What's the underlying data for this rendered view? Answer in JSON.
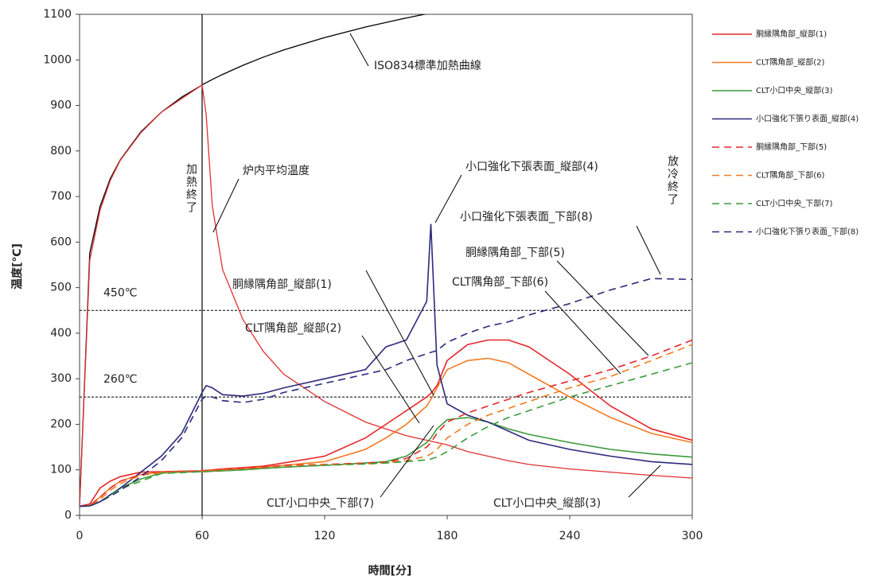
{
  "chart_data": {
    "type": "line",
    "x_label": "時間[分]",
    "y_label": "温度[℃]",
    "xlim": [
      0,
      300
    ],
    "xticks": [
      0,
      60,
      120,
      180,
      240,
      300
    ],
    "ylim": [
      0,
      1100
    ],
    "yticks": [
      0,
      100,
      200,
      300,
      400,
      500,
      600,
      700,
      800,
      900,
      1000,
      1100
    ],
    "legend": "right",
    "x": [
      0,
      5,
      10,
      15,
      20,
      30,
      40,
      50,
      60,
      62,
      65,
      70,
      80,
      90,
      100,
      120,
      140,
      150,
      160,
      170,
      172,
      175,
      180,
      190,
      200,
      210,
      220,
      240,
      260,
      280,
      300
    ],
    "reference_curves": [
      {
        "name": "ISO834標準加熱曲線",
        "color": "#000000",
        "values": [
          20,
          576,
          678,
          739,
          781,
          842,
          885,
          918,
          945,
          950,
          957,
          968,
          988,
          1006,
          1022,
          1049,
          1072,
          1082,
          1092,
          1101,
          1103,
          1105,
          1110,
          null,
          null,
          null,
          null,
          null,
          null,
          null,
          null
        ]
      },
      {
        "name": "炉内平均温度",
        "color": "#e03030",
        "values": [
          20,
          560,
          670,
          735,
          780,
          840,
          885,
          915,
          945,
          880,
          680,
          540,
          430,
          360,
          310,
          250,
          205,
          190,
          175,
          165,
          163,
          160,
          155,
          140,
          130,
          120,
          112,
          102,
          95,
          88,
          82
        ]
      }
    ],
    "series": [
      {
        "name": "胴縁隅角部_縦部(1)",
        "color": "#e8262a",
        "line_style": "solid",
        "values": [
          20,
          25,
          60,
          75,
          85,
          95,
          96,
          97,
          98,
          99,
          100,
          102,
          105,
          108,
          115,
          130,
          170,
          200,
          230,
          260,
          268,
          285,
          340,
          375,
          385,
          385,
          370,
          310,
          240,
          190,
          165
        ]
      },
      {
        "name": "CLT隅角部_縦部(2)",
        "color": "#f47a20",
        "line_style": "solid",
        "values": [
          20,
          22,
          40,
          60,
          75,
          90,
          95,
          96,
          97,
          98,
          99,
          100,
          103,
          106,
          110,
          118,
          145,
          170,
          200,
          240,
          255,
          280,
          320,
          340,
          345,
          335,
          310,
          260,
          215,
          180,
          160
        ]
      },
      {
        "name": "CLT小口中央_縦部(3)",
        "color": "#3b9b3b",
        "line_style": "solid",
        "values": [
          20,
          21,
          30,
          45,
          60,
          80,
          93,
          95,
          96,
          96,
          97,
          98,
          100,
          103,
          106,
          110,
          115,
          118,
          130,
          160,
          170,
          190,
          210,
          215,
          205,
          190,
          178,
          160,
          145,
          135,
          128
        ]
      },
      {
        "name": "小口強化下張り表面_縦部(4)",
        "color": "#2c2a7c",
        "line_style": "solid",
        "values": [
          20,
          21,
          30,
          45,
          60,
          95,
          130,
          180,
          270,
          285,
          280,
          265,
          262,
          268,
          280,
          300,
          320,
          370,
          385,
          470,
          640,
          330,
          245,
          220,
          205,
          185,
          165,
          145,
          130,
          118,
          112
        ]
      },
      {
        "name": "胴縁隅角部_下部(5)",
        "color": "#e8262a",
        "line_style": "dashed",
        "values": [
          20,
          22,
          40,
          60,
          75,
          90,
          95,
          96,
          97,
          98,
          98,
          100,
          103,
          106,
          110,
          112,
          115,
          117,
          125,
          150,
          160,
          180,
          205,
          225,
          240,
          255,
          270,
          295,
          320,
          350,
          385
        ]
      },
      {
        "name": "CLT隅角部_下部(6)",
        "color": "#f47a20",
        "line_style": "dashed",
        "values": [
          20,
          21,
          35,
          55,
          70,
          88,
          94,
          95,
          96,
          97,
          97,
          99,
          101,
          104,
          108,
          111,
          113,
          115,
          120,
          130,
          135,
          145,
          170,
          200,
          220,
          235,
          250,
          280,
          305,
          340,
          375
        ]
      },
      {
        "name": "CLT小口中央_下部(7)",
        "color": "#3b9b3b",
        "line_style": "dashed",
        "values": [
          20,
          20,
          30,
          45,
          58,
          75,
          92,
          94,
          96,
          96,
          97,
          98,
          100,
          103,
          106,
          110,
          113,
          115,
          118,
          122,
          124,
          128,
          140,
          170,
          195,
          215,
          230,
          260,
          285,
          310,
          335
        ]
      },
      {
        "name": "小口強化下張り表面_下部(8)",
        "color": "#2c2a7c",
        "line_style": "dashed",
        "values": [
          20,
          21,
          30,
          42,
          55,
          85,
          120,
          170,
          255,
          262,
          260,
          252,
          248,
          255,
          270,
          290,
          310,
          320,
          340,
          355,
          358,
          362,
          380,
          400,
          415,
          425,
          440,
          465,
          495,
          520,
          518
        ]
      }
    ],
    "vline": 60,
    "hlines": [
      {
        "value": 450,
        "label": "450℃"
      },
      {
        "value": 260,
        "label": "260℃"
      }
    ],
    "annotations": [
      "加熱終了",
      "放冷終了",
      "小口強化下張表面_縦部(4)",
      "小口強化下張表面_下部(8)",
      "胴縁隅角部_下部(5)",
      "CLT隅角部_下部(6)",
      "胴縁隅角部_縦部(1)",
      "CLT隅角部_縦部(2)",
      "CLT小口中央_下部(7)",
      "CLT小口中央_縦部(3)"
    ]
  }
}
